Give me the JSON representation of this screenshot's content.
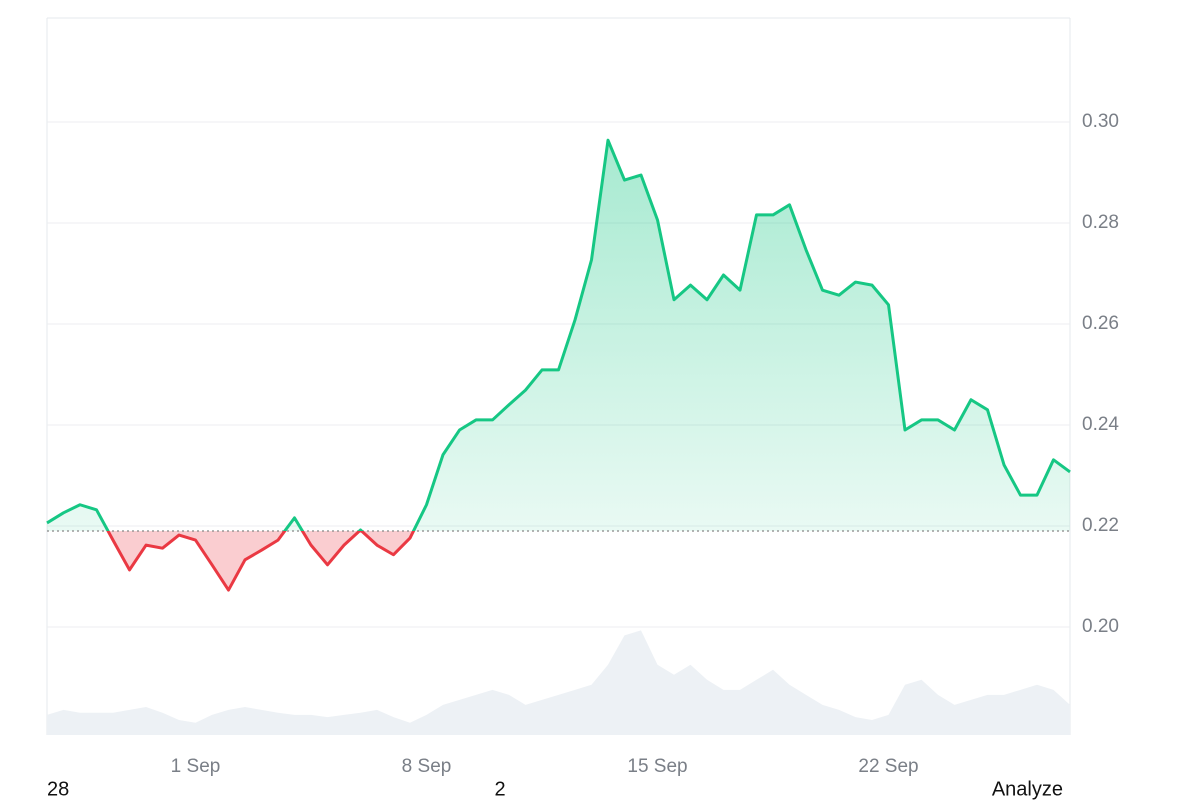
{
  "chart_data": {
    "type": "line",
    "x": [
      -3.5,
      -3,
      -2.5,
      -2,
      -1.5,
      -1,
      -0.5,
      0,
      0.5,
      1,
      1.5,
      2,
      2.5,
      3,
      3.5,
      4,
      4.5,
      5,
      5.5,
      6,
      6.5,
      7,
      7.5,
      8,
      8.5,
      9,
      9.5,
      10,
      10.5,
      11,
      11.5,
      12,
      12.5,
      13,
      13.5,
      14,
      14.5,
      15,
      15.5,
      16,
      16.5,
      17,
      17.5,
      18,
      18.5,
      19,
      19.5,
      20,
      20.5,
      21,
      21.5,
      22,
      22.5,
      23,
      23.5,
      24,
      24.5,
      25,
      25.5,
      26,
      26.5,
      27,
      27.5
    ],
    "series": [
      {
        "name": "Price",
        "color": "#16c784",
        "below_color": "#ea3943",
        "values": [
          0.2206,
          0.2226,
          0.2242,
          0.2232,
          0.2172,
          0.2113,
          0.2162,
          0.2156,
          0.2182,
          0.2172,
          0.2123,
          0.2073,
          0.2133,
          0.2152,
          0.2172,
          0.2216,
          0.2162,
          0.2123,
          0.2162,
          0.2192,
          0.2162,
          0.2143,
          0.2176,
          0.2242,
          0.2341,
          0.239,
          0.241,
          0.241,
          0.244,
          0.2469,
          0.2509,
          0.2509,
          0.2608,
          0.2727,
          0.2964,
          0.2885,
          0.2895,
          0.2806,
          0.2648,
          0.2677,
          0.2648,
          0.2697,
          0.2667,
          0.2816,
          0.2816,
          0.2836,
          0.2747,
          0.2667,
          0.2657,
          0.2683,
          0.2677,
          0.2638,
          0.239,
          0.241,
          0.241,
          0.239,
          0.245,
          0.243,
          0.2321,
          0.2261,
          0.2261,
          0.2331,
          0.2307
        ]
      },
      {
        "name": "Volume",
        "color": "#edf1f5",
        "axis": "y2",
        "values": [
          2.8,
          3.5,
          3.1,
          3.1,
          3.1,
          3.5,
          3.9,
          3.1,
          2.1,
          1.7,
          2.8,
          3.5,
          3.9,
          3.5,
          3.1,
          2.8,
          2.8,
          2.5,
          2.8,
          3.1,
          3.5,
          2.5,
          1.7,
          2.8,
          4.2,
          4.9,
          5.6,
          6.3,
          5.6,
          4.2,
          4.9,
          5.6,
          6.3,
          7.0,
          9.8,
          13.9,
          14.6,
          9.8,
          8.4,
          9.8,
          7.7,
          6.3,
          6.3,
          7.7,
          9.1,
          7.0,
          5.6,
          4.2,
          3.5,
          2.5,
          2.1,
          2.8,
          7.0,
          7.7,
          5.6,
          4.2,
          4.9,
          5.6,
          5.6,
          6.3,
          7.0,
          6.3,
          4.2
        ]
      }
    ],
    "baseline": 0.219,
    "xlim": [
      -3.5,
      27.5
    ],
    "xticks": [
      {
        "value": 1,
        "label": "1 Sep"
      },
      {
        "value": 8,
        "label": "8 Sep"
      },
      {
        "value": 15,
        "label": "15 Sep"
      },
      {
        "value": 22,
        "label": "22 Sep"
      }
    ],
    "ylim": [
      0.1786,
      0.3206
    ],
    "yticks": [
      {
        "value": 0.2,
        "label": "0.20"
      },
      0.22,
      0.24,
      0.26,
      0.28,
      {
        "value": 0.3,
        "label": "0.30"
      }
    ],
    "y2lim": [
      0,
      100
    ],
    "grid": true
  },
  "footer": {
    "left": "28",
    "middle": "2",
    "right": "Analyze"
  }
}
